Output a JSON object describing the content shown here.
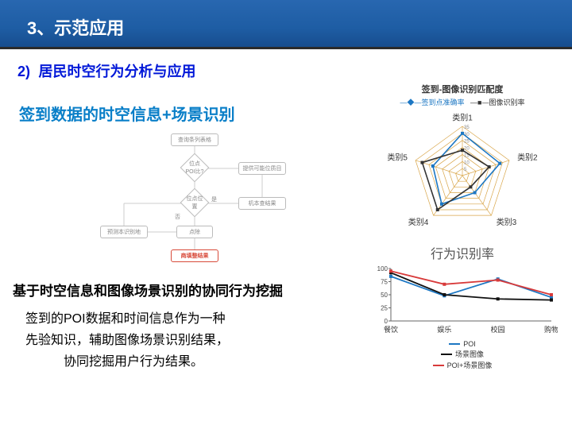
{
  "header": {
    "title": "3、示范应用"
  },
  "section": {
    "num": "2)",
    "title": "居民时空行为分析与应用"
  },
  "sub_title": "签到数据的时空信息+场景识别",
  "body_bold": "基于时空信息和图像场景识别的协同行为挖掘",
  "body_para_l1": "签到的POI数据和时间信息作为一种",
  "body_para_l2": "先验知识，辅助图像场景识别结果，",
  "body_para_l3": "　　　协同挖掘用户行为结果。",
  "flowchart": {
    "nodes": {
      "start": "查询条列表格",
      "dia1": "位点POI比?",
      "match": "提供可能位质目",
      "dia2": "位点位置",
      "dia2_no": "否",
      "dia2_yes": "是",
      "alt": "机本查结果",
      "pred": "预测本识别地",
      "refine": "点除",
      "result": "商填整结果"
    },
    "result_color": "#d84a3a",
    "line_color": "#cccccc"
  },
  "radar": {
    "title": "签到-图像识别匹配度",
    "legend_a": "签到点准确率",
    "legend_b": "图像识别率",
    "legend_a_color": "#1c77c3",
    "legend_b_color": "#333333",
    "axes": [
      "类别1",
      "类别2",
      "类别3",
      "类别4",
      "类别5"
    ],
    "ticks": [
      5,
      10,
      15,
      20,
      25,
      30,
      35
    ],
    "max": 35,
    "series_a": [
      30,
      28,
      15,
      25,
      22
    ],
    "series_b": [
      18,
      20,
      10,
      30,
      30
    ],
    "grid_color": "#d9a64a",
    "tick_color": "#888"
  },
  "linechart": {
    "title": "行为识别率",
    "categories": [
      "餐饮",
      "娱乐",
      "校园",
      "购物"
    ],
    "yticks": [
      0,
      25,
      50,
      75,
      100
    ],
    "ylim": [
      0,
      100
    ],
    "series": [
      {
        "name": "POI",
        "color": "#1c77c3",
        "values": [
          85,
          48,
          80,
          45
        ]
      },
      {
        "name": "场景图像",
        "color": "#111111",
        "values": [
          92,
          50,
          42,
          40
        ]
      },
      {
        "name": "POI+场景图像",
        "color": "#d83a3a",
        "values": [
          95,
          70,
          78,
          50
        ]
      }
    ],
    "axis_color": "#666",
    "grid_color": "#e8e8e8"
  }
}
